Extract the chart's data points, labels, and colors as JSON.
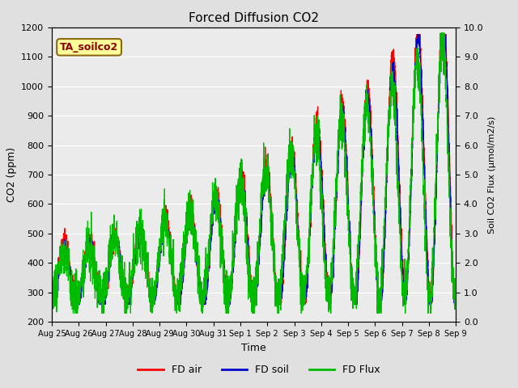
{
  "title": "Forced Diffusion CO2",
  "xlabel": "Time",
  "ylabel_left": "CO2 (ppm)",
  "ylabel_right": "Soil CO2 Flux (μmol/m2/s)",
  "annotation_text": "TA_soilco2",
  "annotation_color": "#8B0000",
  "annotation_bg": "#FFFF99",
  "annotation_border": "#8B6914",
  "ylim_left": [
    200,
    1200
  ],
  "ylim_right": [
    0.0,
    10.0
  ],
  "yticks_left": [
    200,
    300,
    400,
    500,
    600,
    700,
    800,
    900,
    1000,
    1100,
    1200
  ],
  "yticks_right": [
    0.0,
    1.0,
    2.0,
    3.0,
    4.0,
    5.0,
    6.0,
    7.0,
    8.0,
    9.0,
    10.0
  ],
  "xtick_labels": [
    "Aug 25",
    "Aug 26",
    "Aug 27",
    "Aug 28",
    "Aug 29",
    "Aug 30",
    "Aug 31",
    "Sep 1",
    "Sep 2",
    "Sep 3",
    "Sep 4",
    "Sep 5",
    "Sep 6",
    "Sep 7",
    "Sep 8",
    "Sep 9"
  ],
  "color_air": "#FF0000",
  "color_soil": "#0000CD",
  "color_flux": "#00BB00",
  "fig_bg_color": "#E0E0E0",
  "plot_bg_color": "#EBEBEB",
  "grid_color": "#FFFFFF",
  "legend_labels": [
    "FD air",
    "FD soil",
    "FD Flux"
  ],
  "linewidth": 0.9,
  "n_points": 3000
}
